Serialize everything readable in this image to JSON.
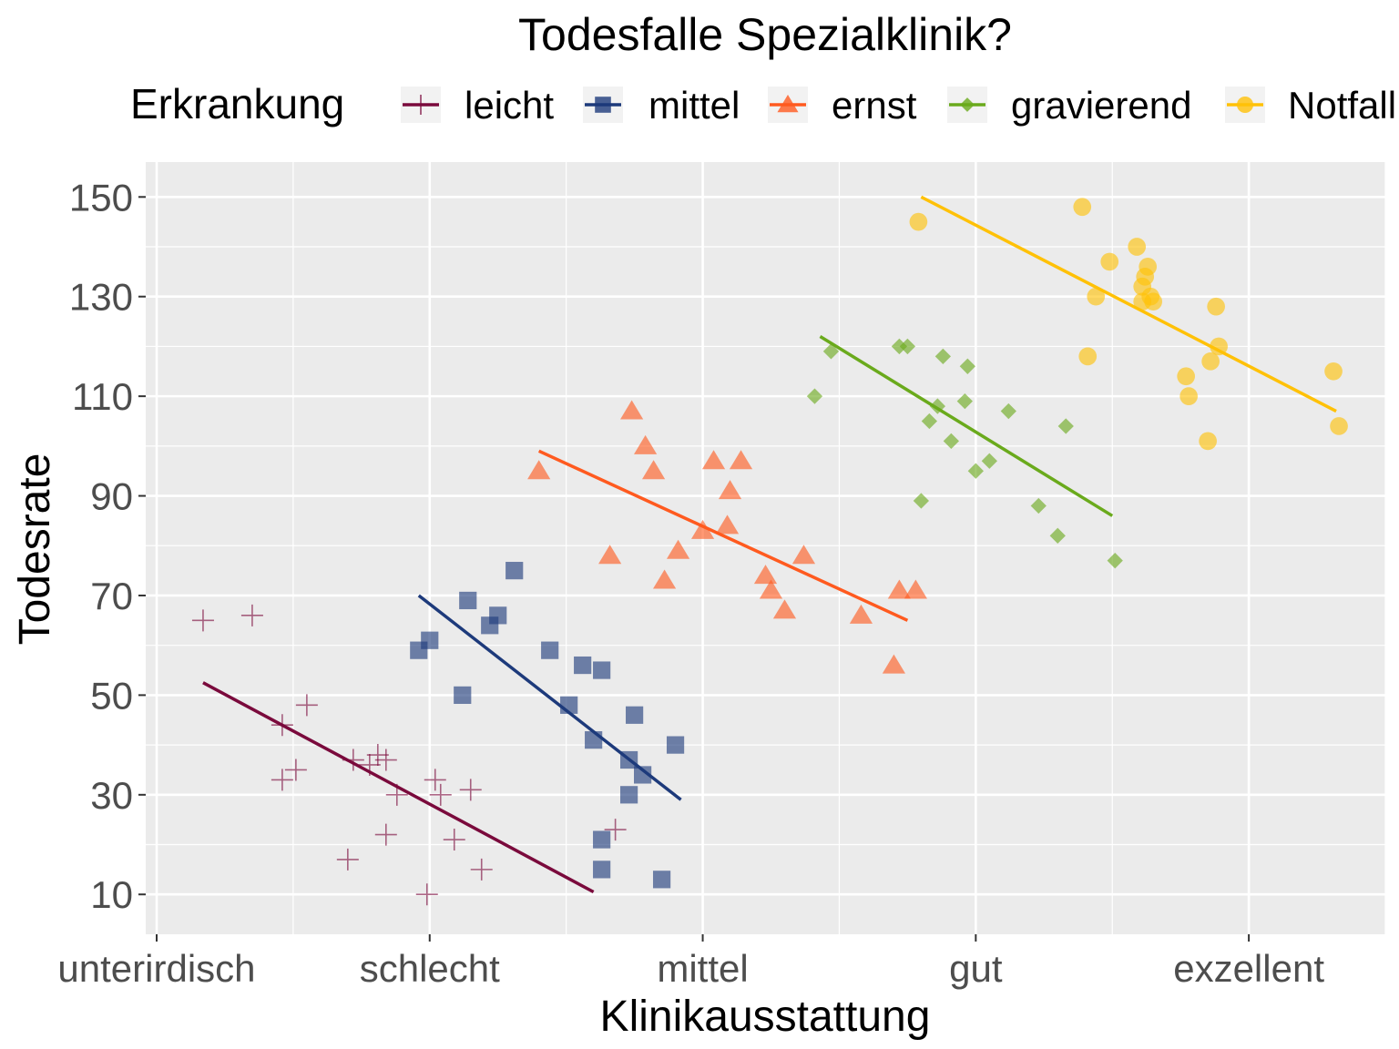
{
  "chart_data": {
    "type": "scatter",
    "title": "Todesfalle Spezialklinik?",
    "xlabel": "Klinikausstattung",
    "ylabel": "Todesrate",
    "legend": {
      "title": "Erkrankung",
      "placement": "top"
    },
    "x_categories": [
      "unterirdisch",
      "schlecht",
      "mittel",
      "gut",
      "exzellent"
    ],
    "xlim": [
      0.96,
      5.5
    ],
    "yticks": [
      10,
      30,
      50,
      70,
      90,
      110,
      130,
      150
    ],
    "ylim": [
      2,
      157
    ],
    "grid": true,
    "series": [
      {
        "name": "leicht",
        "color": "#7a0a3c",
        "shape": "plus",
        "points": [
          [
            1.17,
            65
          ],
          [
            1.35,
            66
          ],
          [
            1.46,
            44
          ],
          [
            1.46,
            33
          ],
          [
            1.51,
            35
          ],
          [
            1.55,
            48
          ],
          [
            1.7,
            17
          ],
          [
            1.72,
            37
          ],
          [
            1.78,
            36
          ],
          [
            1.81,
            38
          ],
          [
            1.84,
            37
          ],
          [
            1.84,
            22
          ],
          [
            1.88,
            30
          ],
          [
            1.99,
            10
          ],
          [
            2.02,
            33
          ],
          [
            2.04,
            30
          ],
          [
            2.09,
            21
          ],
          [
            2.15,
            31
          ],
          [
            2.19,
            15
          ],
          [
            2.68,
            23
          ]
        ],
        "trend": [
          [
            1.17,
            52.5
          ],
          [
            2.6,
            10.5
          ]
        ]
      },
      {
        "name": "mittel",
        "color": "#1d3a7b",
        "shape": "square",
        "points": [
          [
            1.96,
            59
          ],
          [
            2.0,
            61
          ],
          [
            2.12,
            50
          ],
          [
            2.14,
            69
          ],
          [
            2.22,
            64
          ],
          [
            2.25,
            66
          ],
          [
            2.31,
            75
          ],
          [
            2.44,
            59
          ],
          [
            2.51,
            48
          ],
          [
            2.56,
            56
          ],
          [
            2.6,
            41
          ],
          [
            2.63,
            55
          ],
          [
            2.63,
            21
          ],
          [
            2.63,
            15
          ],
          [
            2.73,
            37
          ],
          [
            2.73,
            30
          ],
          [
            2.75,
            46
          ],
          [
            2.78,
            34
          ],
          [
            2.85,
            13
          ],
          [
            2.9,
            40
          ]
        ],
        "trend": [
          [
            1.96,
            70
          ],
          [
            2.92,
            29
          ]
        ]
      },
      {
        "name": "ernst",
        "color": "#ff5a1f",
        "shape": "triangle",
        "points": [
          [
            2.4,
            95
          ],
          [
            2.66,
            78
          ],
          [
            2.74,
            107
          ],
          [
            2.79,
            100
          ],
          [
            2.82,
            95
          ],
          [
            2.86,
            73
          ],
          [
            2.91,
            79
          ],
          [
            3.0,
            83
          ],
          [
            3.04,
            97
          ],
          [
            3.09,
            84
          ],
          [
            3.1,
            91
          ],
          [
            3.14,
            97
          ],
          [
            3.23,
            74
          ],
          [
            3.25,
            71
          ],
          [
            3.3,
            67
          ],
          [
            3.37,
            78
          ],
          [
            3.58,
            66
          ],
          [
            3.7,
            56
          ],
          [
            3.72,
            71
          ],
          [
            3.78,
            71
          ]
        ],
        "trend": [
          [
            2.4,
            99
          ],
          [
            3.75,
            65
          ]
        ]
      },
      {
        "name": "gravierend",
        "color": "#6aaa1c",
        "shape": "diamond",
        "points": [
          [
            3.41,
            110
          ],
          [
            3.47,
            119
          ],
          [
            3.72,
            120
          ],
          [
            3.75,
            120
          ],
          [
            3.8,
            89
          ],
          [
            3.83,
            105
          ],
          [
            3.86,
            108
          ],
          [
            3.88,
            118
          ],
          [
            3.91,
            101
          ],
          [
            3.96,
            109
          ],
          [
            3.97,
            116
          ],
          [
            4.0,
            95
          ],
          [
            4.05,
            97
          ],
          [
            4.12,
            107
          ],
          [
            4.23,
            88
          ],
          [
            4.3,
            82
          ],
          [
            4.33,
            104
          ],
          [
            4.51,
            77
          ]
        ],
        "trend": [
          [
            3.43,
            122
          ],
          [
            4.5,
            86
          ]
        ]
      },
      {
        "name": "Notfall",
        "color": "#ffc107",
        "shape": "circle",
        "points": [
          [
            3.79,
            145
          ],
          [
            4.39,
            148
          ],
          [
            4.41,
            118
          ],
          [
            4.44,
            130
          ],
          [
            4.49,
            137
          ],
          [
            4.59,
            140
          ],
          [
            4.61,
            129
          ],
          [
            4.61,
            132
          ],
          [
            4.62,
            134
          ],
          [
            4.63,
            136
          ],
          [
            4.64,
            130
          ],
          [
            4.65,
            129
          ],
          [
            4.77,
            114
          ],
          [
            4.78,
            110
          ],
          [
            4.85,
            101
          ],
          [
            4.86,
            117
          ],
          [
            4.88,
            128
          ],
          [
            4.89,
            120
          ],
          [
            5.31,
            115
          ],
          [
            5.33,
            104
          ]
        ],
        "trend": [
          [
            3.8,
            150
          ],
          [
            5.32,
            107
          ]
        ]
      }
    ]
  }
}
